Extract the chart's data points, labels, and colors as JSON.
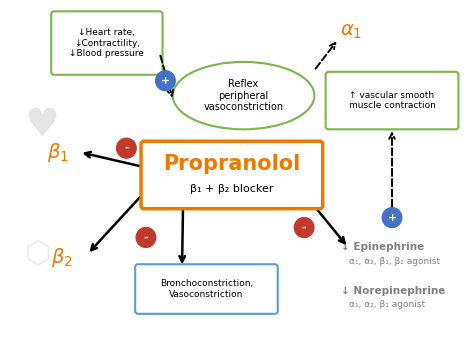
{
  "bg_color": "#ffffff",
  "title": "Propranolol",
  "subtitle": "β₁ + β₂ blocker",
  "title_color": "#f07800",
  "title_box_color": "#f07800",
  "plus_circle_color": "#4472c4",
  "minus_circle_color": "#c0392b",
  "green_box_color": "#7ab648",
  "blue_box_color": "#5b9bd5",
  "orange_label_color": "#f07800",
  "gray_text_color": "#7f7f7f",
  "heart_text": "↓Heart rate,\n↓Contractility,\n↓Blood pressure",
  "reflex_text": "Reflex\nperipheral\nvasoconstriction",
  "vasc_text": "↑ vascular smooth\nmuscle contraction",
  "broncho_text": "Bronchoconstriction,\nVasoconstriction",
  "epi_line1": "↓ Epinephrine",
  "epi_line2": "α₁, α₂, β₁, β₂ agonist",
  "norepi_line1": "↓ Norepinephrine",
  "norepi_line2": "α₁, α₂, β₁ agonist"
}
